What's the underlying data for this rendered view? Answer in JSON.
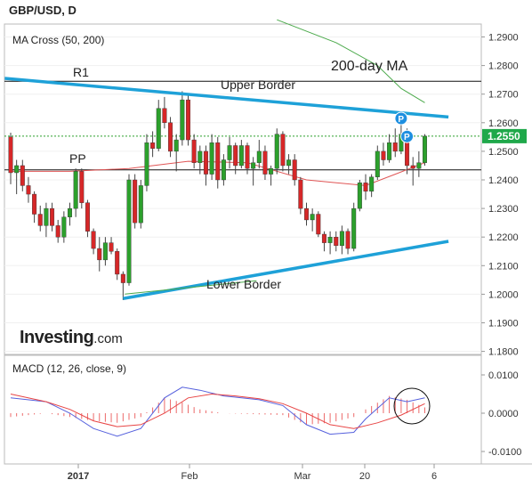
{
  "header": {
    "title": "GBP/USD, D"
  },
  "panels": {
    "price_label": "MA Cross (50, 200)",
    "macd_label": "MACD (12, 26, close, 9)"
  },
  "annotations": {
    "r1": "R1",
    "pp": "PP",
    "upper_border": "Upper Border",
    "lower_border": "Lower Border",
    "ma200": "200-day MA",
    "marker": "P"
  },
  "brand": {
    "name": "Investing",
    "suffix": ".com"
  },
  "colors": {
    "up": "#2ca02c",
    "down": "#d62728",
    "trendline": "#1ea1d8",
    "ma50": "#e05555",
    "ma200": "#4caa4c",
    "macd": "#5560dd",
    "signal": "#e84545",
    "price_badge": "#1fa84a"
  },
  "chart_data": [
    {
      "type": "candlestick",
      "title": "GBP/USD, D",
      "ylim": [
        1.18,
        1.295
      ],
      "y_ticks": [
        "1.2900",
        "1.2800",
        "1.2700",
        "1.2600",
        "1.2500",
        "1.2400",
        "1.2300",
        "1.2200",
        "1.2100",
        "1.2000",
        "1.1900",
        "1.1800"
      ],
      "x_ticks": [
        "2017",
        "Feb",
        "Mar",
        "20",
        "6"
      ],
      "current_price": "1.2550",
      "levels": {
        "R1": 1.2745,
        "PP": 1.2435,
        "current": 1.2553
      },
      "candles": [
        [
          1.255,
          1.2565,
          1.2385,
          1.2425
        ],
        [
          1.2425,
          1.247,
          1.235,
          1.245
        ],
        [
          1.245,
          1.247,
          1.236,
          1.238
        ],
        [
          1.238,
          1.241,
          1.232,
          1.235
        ],
        [
          1.235,
          1.236,
          1.225,
          1.228
        ],
        [
          1.228,
          1.231,
          1.222,
          1.224
        ],
        [
          1.224,
          1.232,
          1.22,
          1.23
        ],
        [
          1.23,
          1.232,
          1.222,
          1.224
        ],
        [
          1.224,
          1.226,
          1.218,
          1.22
        ],
        [
          1.22,
          1.229,
          1.218,
          1.227
        ],
        [
          1.227,
          1.232,
          1.224,
          1.23
        ],
        [
          1.23,
          1.244,
          1.227,
          1.243
        ],
        [
          1.243,
          1.244,
          1.23,
          1.232
        ],
        [
          1.232,
          1.233,
          1.22,
          1.222
        ],
        [
          1.222,
          1.223,
          1.214,
          1.216
        ],
        [
          1.216,
          1.22,
          1.208,
          1.212
        ],
        [
          1.212,
          1.22,
          1.21,
          1.218
        ],
        [
          1.218,
          1.22,
          1.214,
          1.215
        ],
        [
          1.215,
          1.216,
          1.205,
          1.207
        ],
        [
          1.207,
          1.208,
          1.198,
          1.204
        ],
        [
          1.204,
          1.242,
          1.203,
          1.24
        ],
        [
          1.24,
          1.242,
          1.223,
          1.225
        ],
        [
          1.225,
          1.24,
          1.223,
          1.238
        ],
        [
          1.238,
          1.256,
          1.236,
          1.253
        ],
        [
          1.253,
          1.257,
          1.248,
          1.251
        ],
        [
          1.251,
          1.268,
          1.25,
          1.265
        ],
        [
          1.265,
          1.269,
          1.258,
          1.26
        ],
        [
          1.26,
          1.262,
          1.248,
          1.25
        ],
        [
          1.25,
          1.256,
          1.243,
          1.254
        ],
        [
          1.254,
          1.271,
          1.252,
          1.268
        ],
        [
          1.268,
          1.27,
          1.252,
          1.254
        ],
        [
          1.254,
          1.256,
          1.244,
          1.246
        ],
        [
          1.246,
          1.252,
          1.242,
          1.25
        ],
        [
          1.25,
          1.252,
          1.238,
          1.242
        ],
        [
          1.242,
          1.256,
          1.24,
          1.253
        ],
        [
          1.253,
          1.255,
          1.237,
          1.24
        ],
        [
          1.24,
          1.249,
          1.238,
          1.247
        ],
        [
          1.247,
          1.255,
          1.244,
          1.252
        ],
        [
          1.252,
          1.253,
          1.242,
          1.245
        ],
        [
          1.245,
          1.254,
          1.244,
          1.252
        ],
        [
          1.252,
          1.253,
          1.242,
          1.244
        ],
        [
          1.244,
          1.248,
          1.238,
          1.246
        ],
        [
          1.246,
          1.254,
          1.244,
          1.25
        ],
        [
          1.25,
          1.252,
          1.24,
          1.242
        ],
        [
          1.242,
          1.245,
          1.238,
          1.244
        ],
        [
          1.244,
          1.258,
          1.242,
          1.256
        ],
        [
          1.256,
          1.257,
          1.243,
          1.245
        ],
        [
          1.245,
          1.249,
          1.242,
          1.247
        ],
        [
          1.247,
          1.249,
          1.238,
          1.24
        ],
        [
          1.24,
          1.241,
          1.228,
          1.23
        ],
        [
          1.23,
          1.232,
          1.224,
          1.226
        ],
        [
          1.226,
          1.23,
          1.222,
          1.228
        ],
        [
          1.228,
          1.229,
          1.22,
          1.221
        ],
        [
          1.221,
          1.222,
          1.215,
          1.218
        ],
        [
          1.218,
          1.222,
          1.214,
          1.22
        ],
        [
          1.22,
          1.222,
          1.215,
          1.217
        ],
        [
          1.217,
          1.224,
          1.214,
          1.222
        ],
        [
          1.222,
          1.223,
          1.214,
          1.216
        ],
        [
          1.216,
          1.232,
          1.215,
          1.23
        ],
        [
          1.23,
          1.24,
          1.229,
          1.239
        ],
        [
          1.239,
          1.242,
          1.233,
          1.236
        ],
        [
          1.236,
          1.242,
          1.234,
          1.241
        ],
        [
          1.241,
          1.252,
          1.24,
          1.25
        ],
        [
          1.25,
          1.253,
          1.245,
          1.247
        ],
        [
          1.247,
          1.256,
          1.246,
          1.253
        ],
        [
          1.253,
          1.258,
          1.248,
          1.25
        ],
        [
          1.25,
          1.262,
          1.249,
          1.256
        ],
        [
          1.256,
          1.258,
          1.242,
          1.245
        ],
        [
          1.245,
          1.248,
          1.238,
          1.244
        ],
        [
          1.244,
          1.25,
          1.241,
          1.246
        ],
        [
          1.246,
          1.256,
          1.245,
          1.2553
        ]
      ],
      "series": [
        {
          "name": "50-day MA",
          "x": [
            0,
            10,
            20,
            30,
            40,
            50,
            60,
            65,
            70
          ],
          "values": [
            1.243,
            1.243,
            1.244,
            1.2465,
            1.246,
            1.24,
            1.238,
            1.242,
            1.246
          ]
        },
        {
          "name": "200-day MA",
          "x": [
            45,
            55,
            62,
            66,
            70
          ],
          "values": [
            1.296,
            1.288,
            1.28,
            1.272,
            1.267
          ]
        }
      ],
      "trendlines": [
        {
          "name": "Upper Border",
          "points": [
            [
              -1,
              1.2755
            ],
            [
              74,
              1.262
            ]
          ]
        },
        {
          "name": "Lower Border",
          "points": [
            [
              19,
              1.1985
            ],
            [
              74,
              1.2185
            ]
          ]
        }
      ],
      "markers": [
        {
          "label": "P",
          "x": 66,
          "y": 1.2615
        },
        {
          "label": "P",
          "x": 67,
          "y": 1.2552
        }
      ]
    },
    {
      "type": "line",
      "title": "MACD (12, 26, close, 9)",
      "ylim": [
        -0.0125,
        0.0125
      ],
      "y_ticks": [
        "0.0100",
        "0.0000",
        "-0.0100"
      ],
      "x_ticks": [
        "2017",
        "Feb",
        "Mar",
        "20",
        "6"
      ],
      "series": [
        {
          "name": "MACD",
          "x": [
            0,
            6,
            10,
            14,
            18,
            22,
            26,
            29,
            32,
            36,
            42,
            46,
            50,
            54,
            58,
            60,
            64,
            67,
            70
          ],
          "values": [
            0.004,
            0.003,
            0.0,
            -0.004,
            -0.006,
            -0.004,
            0.004,
            0.0068,
            0.006,
            0.0045,
            0.0035,
            0.002,
            -0.003,
            -0.0055,
            -0.005,
            -0.0015,
            0.004,
            0.003,
            0.004
          ]
        },
        {
          "name": "Signal",
          "x": [
            0,
            6,
            10,
            14,
            18,
            22,
            26,
            30,
            34,
            38,
            42,
            46,
            50,
            54,
            58,
            62,
            66,
            70
          ],
          "values": [
            0.005,
            0.003,
            0.001,
            -0.002,
            -0.0035,
            -0.003,
            0.0,
            0.004,
            0.005,
            0.0045,
            0.0038,
            0.0025,
            0.0,
            -0.003,
            -0.004,
            -0.0025,
            -0.0005,
            0.0025
          ]
        },
        {
          "name": "Histogram",
          "x": [
            0,
            6,
            10,
            14,
            18,
            22,
            26,
            29,
            32,
            36,
            42,
            46,
            50,
            54,
            58,
            60,
            64,
            67,
            70
          ],
          "values": [
            -0.001,
            0.0,
            -0.001,
            -0.002,
            -0.0025,
            -0.001,
            0.004,
            0.0028,
            0.001,
            0.0,
            -0.0003,
            -0.0005,
            -0.003,
            -0.0025,
            -0.001,
            0.001,
            0.0045,
            0.0035,
            0.0015
          ]
        }
      ]
    }
  ]
}
